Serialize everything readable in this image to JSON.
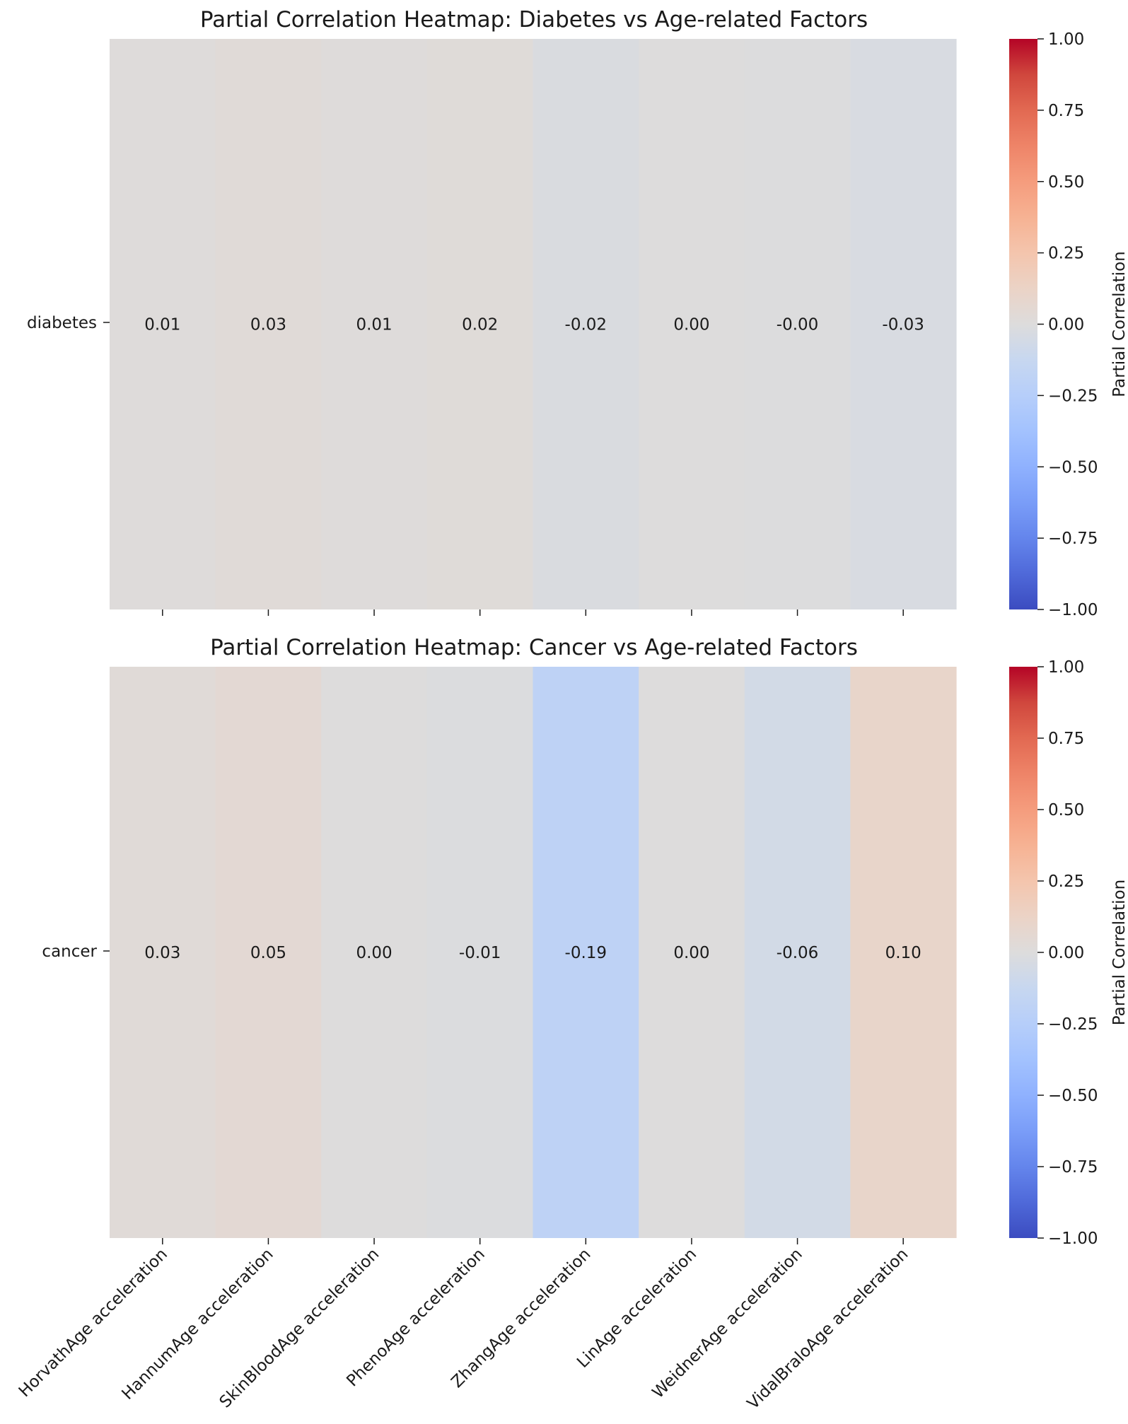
{
  "chart_data": [
    {
      "type": "heatmap",
      "title": "Partial Correlation Heatmap: Diabetes vs Age-related Factors",
      "rows": [
        "diabetes"
      ],
      "columns": [
        "HorvathAge acceleration",
        "HannumAge acceleration",
        "SkinBloodAge acceleration",
        "PhenoAge acceleration",
        "ZhangAge acceleration",
        "LinAge acceleration",
        "WeidnerAge acceleration",
        "VidalBraloAge acceleration"
      ],
      "values": [
        [
          0.01,
          0.03,
          0.01,
          0.02,
          -0.02,
          0.0,
          -0.004,
          -0.03
        ]
      ],
      "value_labels": [
        [
          "0.01",
          "0.03",
          "0.01",
          "0.02",
          "-0.02",
          "0.00",
          "-0.00",
          "-0.03"
        ]
      ],
      "show_column_labels": false,
      "colorbar": {
        "label": "Partial Correlation",
        "range": [
          -1.0,
          1.0
        ],
        "colormap": "coolwarm",
        "ticks": [
          1.0,
          0.75,
          0.5,
          0.25,
          0.0,
          -0.25,
          -0.5,
          -0.75,
          -1.0
        ],
        "tick_labels": [
          "1.00",
          "0.75",
          "0.50",
          "0.25",
          "0.00",
          "−0.25",
          "−0.50",
          "−0.75",
          "−1.00"
        ]
      }
    },
    {
      "type": "heatmap",
      "title": "Partial Correlation Heatmap: Cancer vs Age-related Factors",
      "rows": [
        "cancer"
      ],
      "columns": [
        "HorvathAge acceleration",
        "HannumAge acceleration",
        "SkinBloodAge acceleration",
        "PhenoAge acceleration",
        "ZhangAge acceleration",
        "LinAge acceleration",
        "WeidnerAge acceleration",
        "VidalBraloAge acceleration"
      ],
      "values": [
        [
          0.03,
          0.05,
          0.0,
          -0.01,
          -0.19,
          0.0,
          -0.06,
          0.1
        ]
      ],
      "value_labels": [
        [
          "0.03",
          "0.05",
          "0.00",
          "-0.01",
          "-0.19",
          "0.00",
          "-0.06",
          "0.10"
        ]
      ],
      "show_column_labels": true,
      "colorbar": {
        "label": "Partial Correlation",
        "range": [
          -1.0,
          1.0
        ],
        "colormap": "coolwarm",
        "ticks": [
          1.0,
          0.75,
          0.5,
          0.25,
          0.0,
          -0.25,
          -0.5,
          -0.75,
          -1.0
        ],
        "tick_labels": [
          "1.00",
          "0.75",
          "0.50",
          "0.25",
          "0.00",
          "−0.25",
          "−0.50",
          "−0.75",
          "−1.00"
        ]
      }
    }
  ]
}
